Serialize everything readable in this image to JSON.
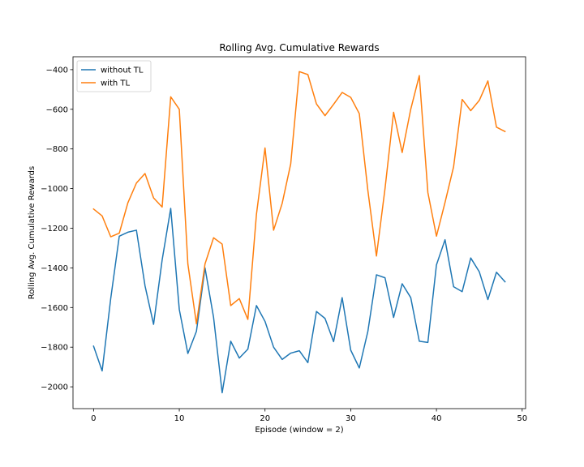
{
  "chart_data": {
    "type": "line",
    "title": "Rolling Avg. Cumulative Rewards",
    "xlabel": "Episode (window = 2)",
    "ylabel": "Rolling Avg. Cumulative Rewards",
    "xlim": [
      -2.4,
      50.4
    ],
    "ylim": [
      -2110,
      -335
    ],
    "xticks": [
      0,
      10,
      20,
      30,
      40,
      50
    ],
    "yticks": [
      -2000,
      -1800,
      -1600,
      -1400,
      -1200,
      -1000,
      -800,
      -600,
      -400
    ],
    "grid": false,
    "legend_position": "top-left",
    "x": [
      0,
      1,
      2,
      3,
      4,
      5,
      6,
      7,
      8,
      9,
      10,
      11,
      12,
      13,
      14,
      15,
      16,
      17,
      18,
      19,
      20,
      21,
      22,
      23,
      24,
      25,
      26,
      27,
      28,
      29,
      30,
      31,
      32,
      33,
      34,
      35,
      36,
      37,
      38,
      39,
      40,
      41,
      42,
      43,
      44,
      45,
      46,
      47,
      48
    ],
    "series": [
      {
        "name": "without TL",
        "color": "#1f77b4",
        "values": [
          -1795,
          -1920,
          -1555,
          -1240,
          -1220,
          -1210,
          -1490,
          -1685,
          -1360,
          -1100,
          -1610,
          -1832,
          -1720,
          -1400,
          -1650,
          -2030,
          -1770,
          -1855,
          -1810,
          -1590,
          -1670,
          -1800,
          -1862,
          -1830,
          -1818,
          -1878,
          -1620,
          -1655,
          -1772,
          -1550,
          -1815,
          -1905,
          -1720,
          -1435,
          -1450,
          -1650,
          -1480,
          -1550,
          -1770,
          -1776,
          -1385,
          -1258,
          -1495,
          -1520,
          -1350,
          -1420,
          -1560,
          -1422,
          -1470
        ]
      },
      {
        "name": "with TL",
        "color": "#ff7f0e",
        "values": [
          -1103,
          -1138,
          -1243,
          -1225,
          -1072,
          -972,
          -924,
          -1047,
          -1093,
          -537,
          -600,
          -1380,
          -1682,
          -1380,
          -1248,
          -1280,
          -1590,
          -1555,
          -1660,
          -1130,
          -795,
          -1210,
          -1075,
          -875,
          -410,
          -425,
          -573,
          -632,
          -575,
          -515,
          -540,
          -622,
          -1010,
          -1340,
          -1000,
          -615,
          -818,
          -600,
          -430,
          -1020,
          -1240,
          -1070,
          -890,
          -550,
          -607,
          -555,
          -457,
          -690,
          -712
        ]
      }
    ]
  }
}
